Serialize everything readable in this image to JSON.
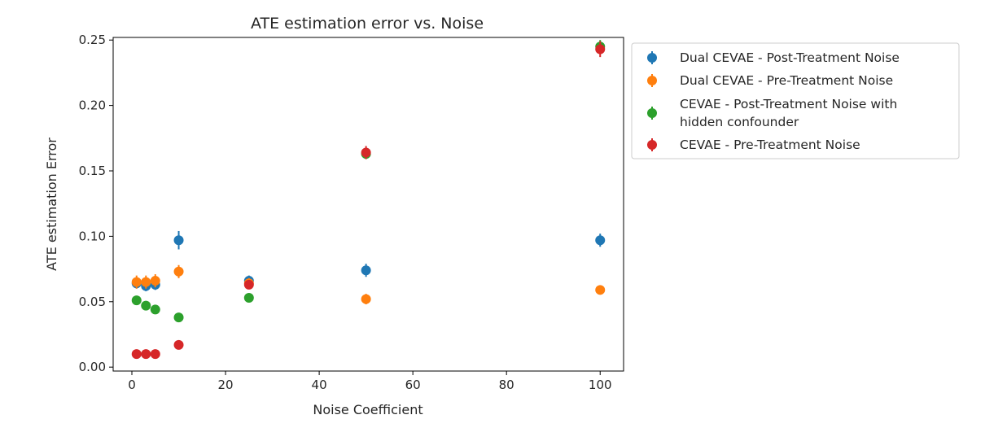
{
  "chart_data": {
    "type": "scatter",
    "title": "ATE estimation error vs. Noise",
    "xlabel": "Noise Coefficient",
    "ylabel": "ATE estimation Error",
    "xlim": [
      -4,
      105
    ],
    "ylim": [
      -0.003,
      0.252
    ],
    "xticks": [
      0,
      20,
      40,
      60,
      80,
      100
    ],
    "yticks": [
      0.0,
      0.05,
      0.1,
      0.15,
      0.2,
      0.25
    ],
    "xtick_labels": [
      "0",
      "20",
      "40",
      "60",
      "80",
      "100"
    ],
    "ytick_labels": [
      "0.00",
      "0.05",
      "0.10",
      "0.15",
      "0.20",
      "0.25"
    ],
    "grid": false,
    "legend_position": "outside-right",
    "error_bars": true,
    "series": [
      {
        "name": "Dual CEVAE - Post-Treatment Noise",
        "color": "#1f77b4",
        "x": [
          1,
          3,
          5,
          10,
          25,
          50,
          100
        ],
        "y": [
          0.064,
          0.062,
          0.063,
          0.097,
          0.066,
          0.074,
          0.097
        ],
        "err": [
          0.004,
          0.004,
          0.004,
          0.007,
          0.004,
          0.005,
          0.005
        ]
      },
      {
        "name": "Dual CEVAE - Pre-Treatment Noise",
        "color": "#ff7f0e",
        "x": [
          1,
          3,
          5,
          10,
          25,
          50,
          100
        ],
        "y": [
          0.065,
          0.065,
          0.066,
          0.073,
          0.064,
          0.052,
          0.059
        ],
        "err": [
          0.005,
          0.005,
          0.005,
          0.005,
          0.004,
          0.004,
          0.003
        ]
      },
      {
        "name": "CEVAE - Post-Treatment Noise with hidden confounder",
        "color": "#2ca02c",
        "x": [
          1,
          3,
          5,
          10,
          25,
          50,
          100
        ],
        "y": [
          0.051,
          0.047,
          0.044,
          0.038,
          0.053,
          0.163,
          0.245
        ],
        "err": [
          0.002,
          0.002,
          0.002,
          0.002,
          0.003,
          0.004,
          0.005
        ]
      },
      {
        "name": "CEVAE - Pre-Treatment Noise",
        "color": "#d62728",
        "x": [
          1,
          3,
          5,
          10,
          25,
          50,
          100
        ],
        "y": [
          0.01,
          0.01,
          0.01,
          0.017,
          0.063,
          0.164,
          0.243
        ],
        "err": [
          0.001,
          0.001,
          0.001,
          0.002,
          0.003,
          0.005,
          0.006
        ]
      }
    ],
    "legend_lines": [
      [
        "Dual CEVAE - Post-Treatment Noise"
      ],
      [
        "Dual CEVAE - Pre-Treatment Noise"
      ],
      [
        "CEVAE - Post-Treatment Noise with",
        "hidden confounder"
      ],
      [
        "CEVAE - Pre-Treatment Noise"
      ]
    ]
  }
}
